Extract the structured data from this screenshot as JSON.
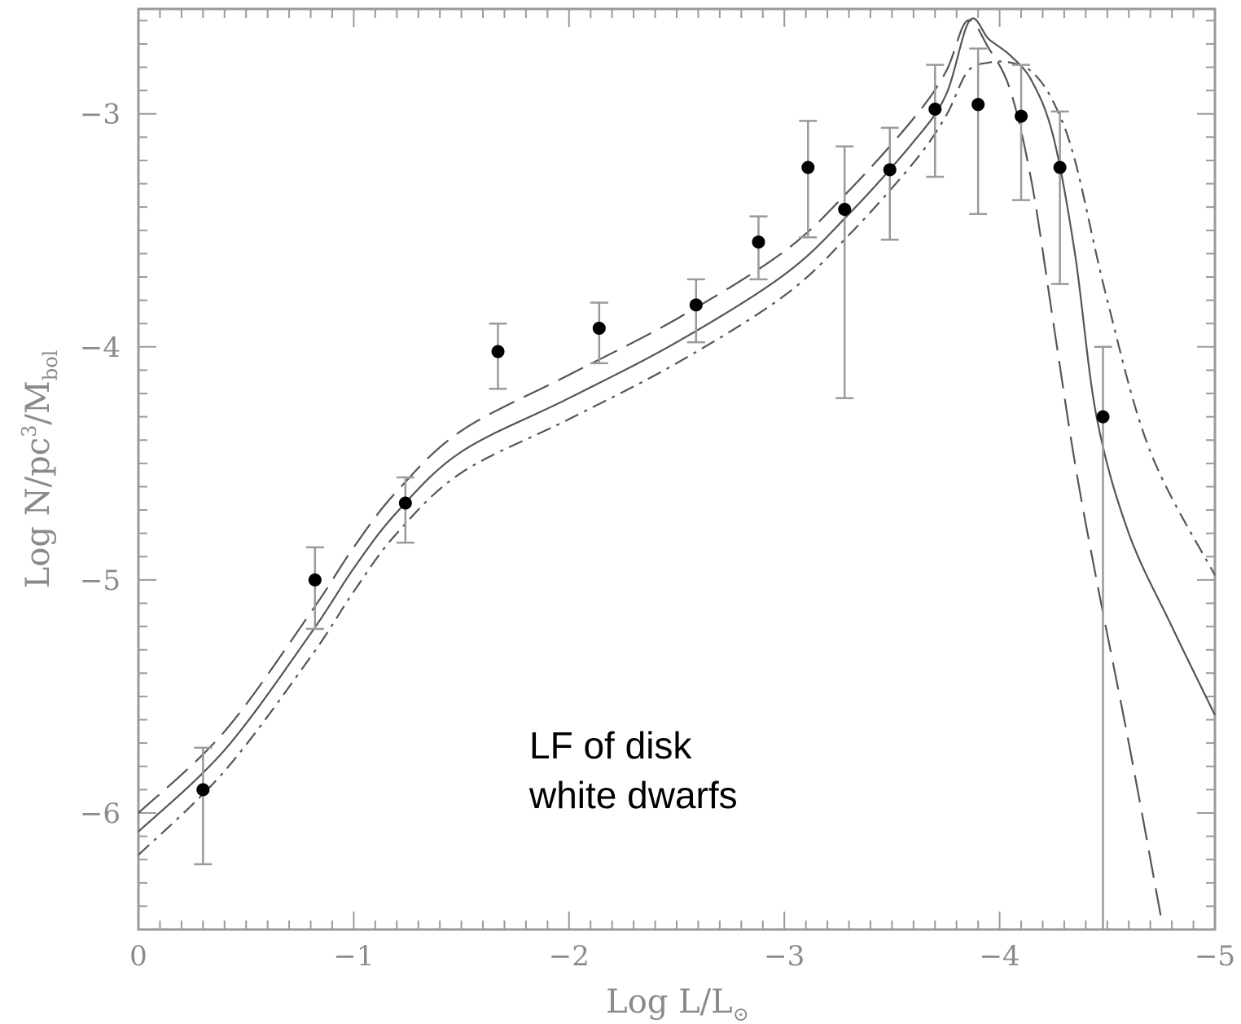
{
  "chart_data": {
    "type": "scatter",
    "xlabel": "Log L/L",
    "xlabel_sub": "⊙",
    "ylabel": "Log N/pc",
    "ylabel_sup": "3",
    "ylabel_tail": "/M",
    "ylabel_sub": "bol",
    "xlim": [
      0,
      -5
    ],
    "ylim": [
      -6.5,
      -2.55
    ],
    "x_ticks": [
      0,
      -1,
      -2,
      -3,
      -4,
      -5
    ],
    "x_tick_labels": [
      "0",
      "−1",
      "−2",
      "−3",
      "−4",
      "−5"
    ],
    "y_ticks": [
      -6,
      -5,
      -4,
      -3
    ],
    "y_tick_labels": [
      "−6",
      "−5",
      "−4",
      "−3"
    ],
    "grid": false,
    "annotation": [
      "LF of disk",
      "white dwarfs"
    ],
    "colors": {
      "axis": "#9a9a9a",
      "points": "#000000",
      "curves": "#555555",
      "text": "#000000"
    },
    "series": [
      {
        "kind": "points",
        "points": [
          {
            "x": -0.3,
            "y": -5.9,
            "err_lo": 0.32,
            "err_hi": 0.18
          },
          {
            "x": -0.82,
            "y": -5.0,
            "err_lo": 0.21,
            "err_hi": 0.14
          },
          {
            "x": -1.24,
            "y": -4.67,
            "err_lo": 0.17,
            "err_hi": 0.11
          },
          {
            "x": -1.67,
            "y": -4.02,
            "err_lo": 0.16,
            "err_hi": 0.12
          },
          {
            "x": -2.14,
            "y": -3.92,
            "err_lo": 0.15,
            "err_hi": 0.11
          },
          {
            "x": -2.59,
            "y": -3.82,
            "err_lo": 0.16,
            "err_hi": 0.11
          },
          {
            "x": -2.88,
            "y": -3.55,
            "err_lo": 0.16,
            "err_hi": 0.11
          },
          {
            "x": -3.11,
            "y": -3.23,
            "err_lo": 0.3,
            "err_hi": 0.2
          },
          {
            "x": -3.28,
            "y": -3.41,
            "err_lo": 0.81,
            "err_hi": 0.27
          },
          {
            "x": -3.49,
            "y": -3.24,
            "err_lo": 0.3,
            "err_hi": 0.18
          },
          {
            "x": -3.7,
            "y": -2.98,
            "err_lo": 0.29,
            "err_hi": 0.19
          },
          {
            "x": -3.9,
            "y": -2.96,
            "err_lo": 0.47,
            "err_hi": 0.24
          },
          {
            "x": -4.1,
            "y": -3.01,
            "err_lo": 0.36,
            "err_hi": 0.22
          },
          {
            "x": -4.28,
            "y": -3.23,
            "err_lo": 0.5,
            "err_hi": 0.24
          },
          {
            "x": -4.48,
            "y": -4.3,
            "err_lo": 2.2,
            "err_hi": 0.3
          }
        ]
      },
      {
        "kind": "curve",
        "style": "solid",
        "x": [
          0,
          -0.4,
          -0.8,
          -1.0,
          -1.2,
          -1.5,
          -2.0,
          -2.5,
          -3.0,
          -3.3,
          -3.6,
          -3.75,
          -3.86,
          -3.95,
          -4.05,
          -4.15,
          -4.25,
          -4.35,
          -4.45,
          -4.6,
          -4.8,
          -5.0
        ],
        "y": [
          -6.08,
          -5.73,
          -5.23,
          -4.95,
          -4.71,
          -4.45,
          -4.22,
          -3.98,
          -3.69,
          -3.43,
          -3.12,
          -2.92,
          -2.6,
          -2.68,
          -2.75,
          -2.86,
          -3.1,
          -3.6,
          -4.3,
          -4.8,
          -5.2,
          -5.58
        ]
      },
      {
        "kind": "curve",
        "style": "long-dash",
        "x": [
          0,
          -0.4,
          -0.8,
          -1.0,
          -1.2,
          -1.5,
          -2.0,
          -2.5,
          -3.0,
          -3.3,
          -3.6,
          -3.75,
          -3.85,
          -3.95,
          -4.05,
          -4.15,
          -4.25,
          -4.35,
          -4.45,
          -4.6,
          -4.75
        ],
        "y": [
          -6.0,
          -5.65,
          -5.14,
          -4.86,
          -4.62,
          -4.36,
          -4.12,
          -3.88,
          -3.59,
          -3.33,
          -3.02,
          -2.82,
          -2.6,
          -2.72,
          -2.9,
          -3.3,
          -3.9,
          -4.5,
          -5.0,
          -5.7,
          -6.45
        ]
      },
      {
        "kind": "curve",
        "style": "short-dash",
        "x": [
          0,
          -0.4,
          -0.8,
          -1.0,
          -1.2,
          -1.5,
          -2.0,
          -2.5,
          -3.0,
          -3.3,
          -3.6,
          -3.75,
          -3.85,
          -3.95,
          -4.05,
          -4.15,
          -4.25,
          -4.35,
          -4.5,
          -4.7,
          -5.0
        ],
        "y": [
          -6.18,
          -5.82,
          -5.33,
          -5.05,
          -4.8,
          -4.54,
          -4.31,
          -4.07,
          -3.78,
          -3.52,
          -3.21,
          -3.01,
          -2.82,
          -2.78,
          -2.78,
          -2.82,
          -2.95,
          -3.2,
          -3.8,
          -4.45,
          -4.98
        ]
      }
    ]
  }
}
